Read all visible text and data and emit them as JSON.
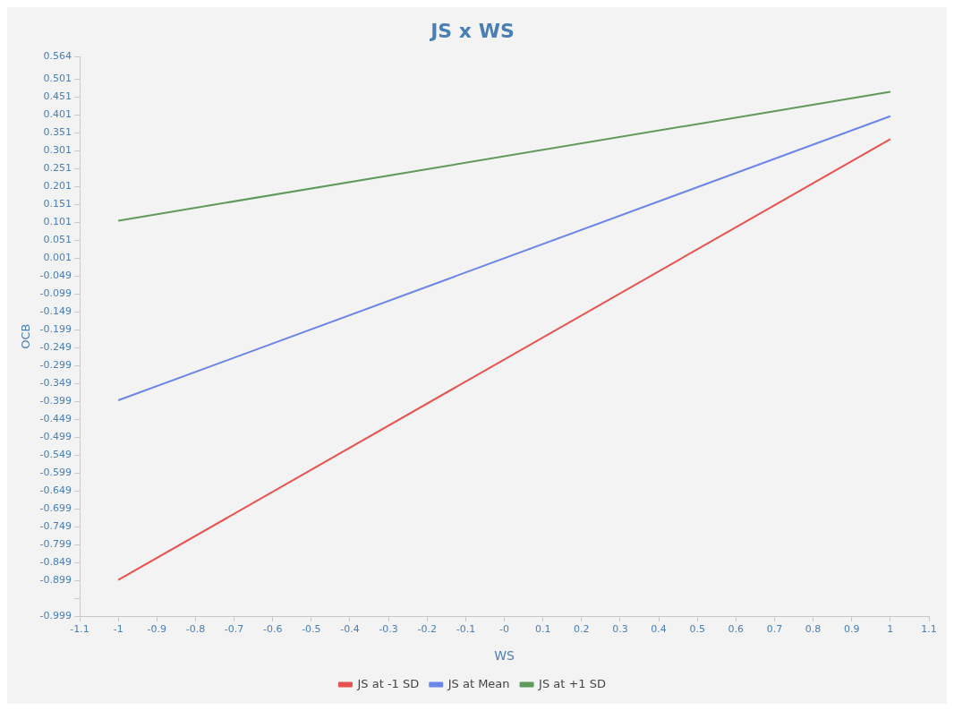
{
  "chart_data": {
    "type": "line",
    "title": "JS x WS",
    "xlabel": "WS",
    "ylabel": "OCB",
    "x": [
      -1,
      1
    ],
    "series": [
      {
        "name": "JS at -1 SD",
        "color": "#e8524f",
        "values": [
          -0.898,
          0.334
        ]
      },
      {
        "name": "JS at Mean",
        "color": "#6b86e8",
        "values": [
          -0.396,
          0.398
        ]
      },
      {
        "name": "JS at +1 SD",
        "color": "#5e9a5a",
        "values": [
          0.106,
          0.466
        ]
      }
    ],
    "xlim": [
      -1.1,
      1.1
    ],
    "xticks": [
      -1.1,
      -1,
      -0.9,
      -0.8,
      -0.7,
      -0.6,
      -0.5,
      -0.4,
      -0.3,
      -0.2,
      -0.1,
      {
        "value": 0,
        "label": "-0"
      },
      0.1,
      0.2,
      0.3,
      0.4,
      0.5,
      0.6,
      0.7,
      0.8,
      0.9,
      1,
      1.1
    ],
    "ylim": [
      -0.999,
      0.564
    ],
    "yticks": [
      0.564,
      0.501,
      0.451,
      0.401,
      0.351,
      0.301,
      0.251,
      0.201,
      0.151,
      0.101,
      0.051,
      0.001,
      -0.049,
      -0.099,
      -0.149,
      -0.199,
      -0.249,
      -0.299,
      -0.349,
      -0.399,
      -0.449,
      -0.499,
      -0.549,
      -0.599,
      -0.649,
      -0.699,
      -0.749,
      -0.799,
      -0.849,
      -0.899,
      {
        "value": -0.949,
        "label": null
      },
      -0.999
    ],
    "grid": false,
    "legend": "bottom",
    "marker": "none",
    "line_style": "solid"
  }
}
